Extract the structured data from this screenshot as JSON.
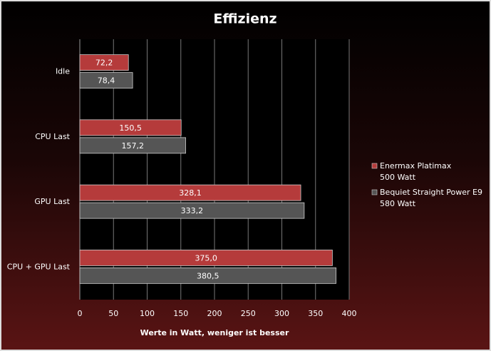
{
  "chart_data": {
    "type": "hbar",
    "title": "Effizienz",
    "categories": [
      "Idle",
      "CPU Last",
      "GPU Last",
      "CPU + GPU Last"
    ],
    "series": [
      {
        "name": "Enermax Platimax\n500 Watt",
        "color": "#b53b3b",
        "values": [
          72.2,
          150.5,
          328.1,
          375.0
        ],
        "value_labels": [
          "72,2",
          "150,5",
          "328,1",
          "375,0"
        ]
      },
      {
        "name": "Bequiet Straight  Power E9\n580 Watt",
        "color": "#555555",
        "values": [
          78.4,
          157.2,
          333.2,
          380.5
        ],
        "value_labels": [
          "78,4",
          "157,2",
          "333,2",
          "380,5"
        ]
      }
    ],
    "xlabel": "Werte in Watt, weniger ist besser",
    "xlim": [
      0,
      400
    ],
    "xticks": [
      0,
      50,
      100,
      150,
      200,
      250,
      300,
      350,
      400
    ],
    "grid": true,
    "legend": "right"
  }
}
